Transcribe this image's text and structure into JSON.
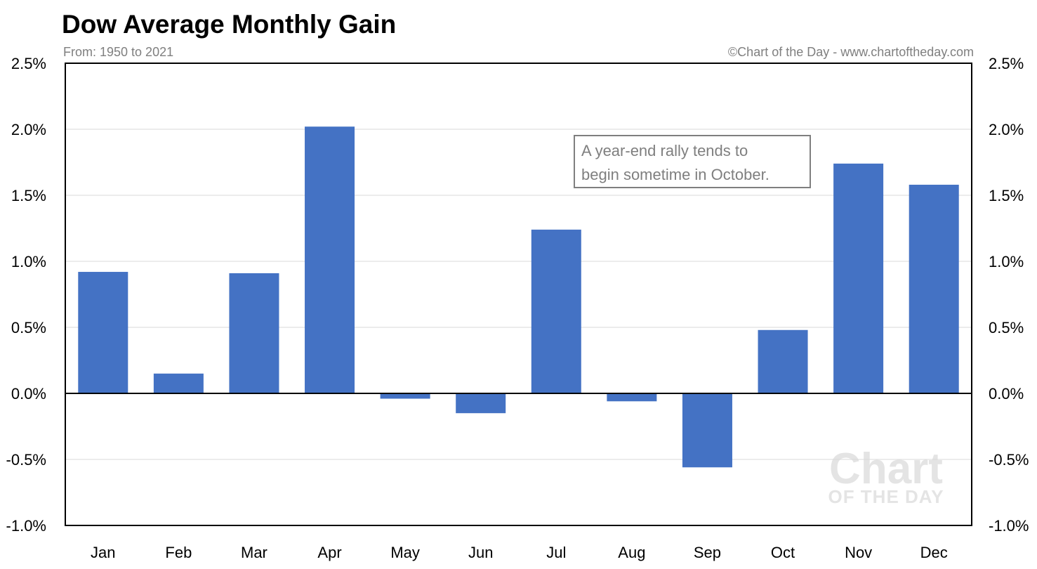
{
  "chart_data": {
    "type": "bar",
    "title": "Dow Average Monthly Gain",
    "subtitle": "From: 1950 to 2021",
    "credit": "©Chart of the Day - www.chartoftheday.com",
    "categories": [
      "Jan",
      "Feb",
      "Mar",
      "Apr",
      "May",
      "Jun",
      "Jul",
      "Aug",
      "Sep",
      "Oct",
      "Nov",
      "Dec"
    ],
    "values": [
      0.92,
      0.15,
      0.91,
      2.02,
      -0.04,
      -0.15,
      1.24,
      -0.06,
      -0.56,
      0.48,
      1.74,
      1.58
    ],
    "unit": "%",
    "ylim": [
      -1.0,
      2.5
    ],
    "yticks": [
      -1.0,
      -0.5,
      0.0,
      0.5,
      1.0,
      1.5,
      2.0,
      2.5
    ],
    "ytick_labels": [
      "-1.0%",
      "-0.5%",
      "0.0%",
      "0.5%",
      "1.0%",
      "1.5%",
      "2.0%",
      "2.5%"
    ],
    "grid": true,
    "bar_color": "#4472c4",
    "annotation": [
      "A year-end rally tends to",
      "begin sometime in October."
    ],
    "watermark": [
      "Chart",
      "OF THE DAY"
    ]
  }
}
